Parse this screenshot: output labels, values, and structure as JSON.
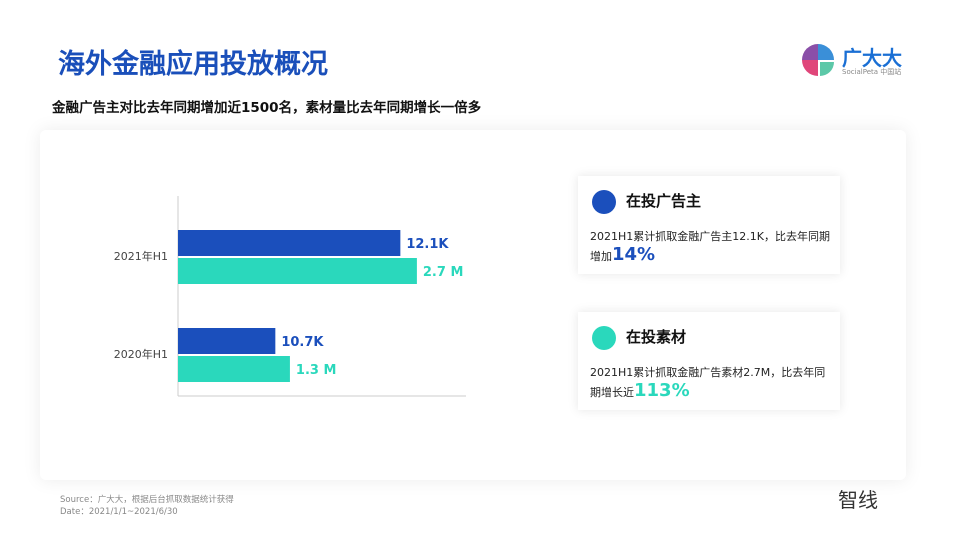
{
  "header": {
    "title": "海外金融应用投放概况",
    "subtitle": "金融广告主对比去年同期增加近1500名，素材量比去年同期增长一倍多"
  },
  "logo": {
    "name": "广大大",
    "sub": "SocialPeta 中国站"
  },
  "chart_data": {
    "type": "bar",
    "orientation": "horizontal",
    "categories": [
      "2021年H1",
      "2020年H1"
    ],
    "series": [
      {
        "values": [
          12.1,
          10.7
        ],
        "labels": [
          "12.1K",
          "10.7K"
        ],
        "color": "#1b4fbc"
      },
      {
        "values": [
          2.7,
          1.3
        ],
        "labels": [
          "2.7 M",
          "1.3 M"
        ],
        "color": "#2ad8bc"
      }
    ],
    "grid": false
  },
  "cards": [
    {
      "title": "在投广告主",
      "text": "2021H1累计抓取金融广告主12.1K，比去年同期增加",
      "pct": "14%",
      "color": "#1b4fbc"
    },
    {
      "title": "在投素材",
      "text": "2021H1累计抓取金融广告素材2.7M，比去年同期增长近",
      "pct": "113%",
      "color": "#2ad8bc"
    }
  ],
  "footer": {
    "source": "Source：广大大，根据后台抓取数据统计获得",
    "date": "Date：2021/1/1~2021/6/30",
    "watermark": "智线"
  }
}
